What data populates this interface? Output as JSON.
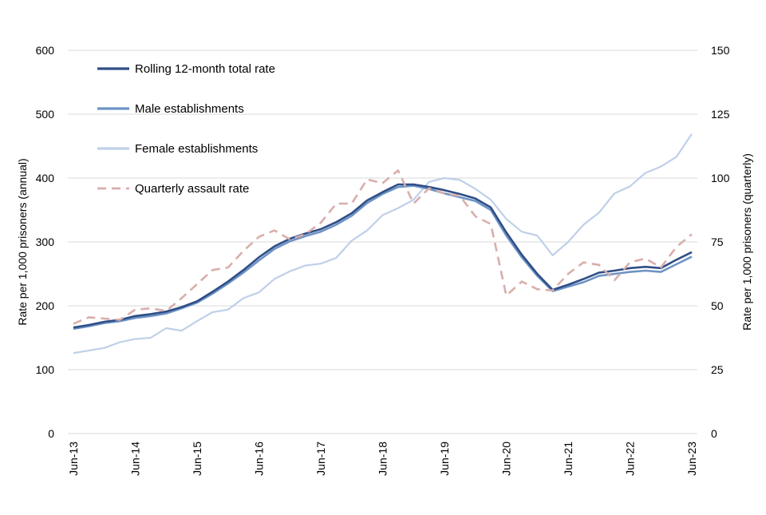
{
  "chart_data": {
    "type": "line",
    "title": "",
    "ylabel": "Rate per 1,000 prisoners (annual)",
    "y2label": "Rate per 1,000 prisoners (quarterly)",
    "ylim": [
      0,
      600
    ],
    "y2lim": [
      0,
      150
    ],
    "yticks": [
      "0",
      "100",
      "200",
      "300",
      "400",
      "500",
      "600"
    ],
    "y2ticks": [
      "0",
      "25",
      "50",
      "75",
      "100",
      "125",
      "150"
    ],
    "xtick_labels": [
      "Jun-13",
      "Jun-14",
      "Jun-15",
      "Jun-16",
      "Jun-17",
      "Jun-18",
      "Jun-19",
      "Jun-20",
      "Jun-21",
      "Jun-22",
      "Jun-23"
    ],
    "grid": true,
    "legend_position": "top-left",
    "categories": [
      "Jun-13",
      "Sep-13",
      "Dec-13",
      "Mar-14",
      "Jun-14",
      "Sep-14",
      "Dec-14",
      "Mar-15",
      "Jun-15",
      "Sep-15",
      "Dec-15",
      "Mar-16",
      "Jun-16",
      "Sep-16",
      "Dec-16",
      "Mar-17",
      "Jun-17",
      "Sep-17",
      "Dec-17",
      "Mar-18",
      "Jun-18",
      "Sep-18",
      "Dec-18",
      "Mar-19",
      "Jun-19",
      "Sep-19",
      "Dec-19",
      "Mar-20",
      "Jun-20",
      "Sep-20",
      "Dec-20",
      "Mar-21",
      "Jun-21",
      "Sep-21",
      "Dec-21",
      "Mar-22",
      "Jun-22",
      "Sep-22",
      "Dec-22",
      "Mar-23",
      "Jun-23"
    ],
    "series": [
      {
        "name": "Rolling 12-month total rate",
        "axis": "left",
        "color": "#2f4e86",
        "style": "solid",
        "values": [
          166,
          170,
          175,
          178,
          184,
          187,
          191,
          198,
          207,
          222,
          238,
          256,
          276,
          293,
          305,
          313,
          320,
          331,
          345,
          365,
          378,
          390,
          390,
          386,
          381,
          375,
          368,
          354,
          315,
          280,
          250,
          225,
          233,
          242,
          252,
          255,
          259,
          261,
          259,
          272,
          284
        ]
      },
      {
        "name": "Male establishments",
        "axis": "left",
        "color": "#6d93c6",
        "style": "solid",
        "values": [
          164,
          168,
          173,
          176,
          181,
          184,
          188,
          196,
          205,
          219,
          235,
          252,
          271,
          289,
          301,
          309,
          316,
          327,
          341,
          361,
          375,
          386,
          388,
          383,
          376,
          370,
          364,
          350,
          310,
          276,
          247,
          223,
          230,
          237,
          247,
          250,
          253,
          255,
          253,
          265,
          277
        ]
      },
      {
        "name": "Female establishments",
        "axis": "left",
        "color": "#bfd0e8",
        "style": "solid",
        "values": [
          126,
          130,
          134,
          143,
          148,
          150,
          165,
          161,
          176,
          190,
          194,
          212,
          221,
          242,
          254,
          263,
          266,
          275,
          302,
          318,
          342,
          353,
          366,
          394,
          400,
          397,
          383,
          366,
          336,
          316,
          310,
          279,
          300,
          327,
          346,
          376,
          387,
          408,
          418,
          433,
          469
        ]
      },
      {
        "name": "Quarterly assault rate",
        "axis": "right",
        "color": "#d8aeab",
        "style": "dashed",
        "values": [
          43,
          45.5,
          45,
          44.5,
          48.5,
          49,
          48,
          53,
          58.5,
          64,
          65,
          71.5,
          77,
          79.5,
          76,
          78,
          82.5,
          90,
          90,
          99.5,
          98,
          103,
          90,
          96,
          94,
          93,
          85,
          82,
          54,
          59.5,
          56.5,
          56,
          62.5,
          67,
          66,
          60,
          67,
          68.5,
          65,
          73,
          78
        ]
      }
    ]
  }
}
